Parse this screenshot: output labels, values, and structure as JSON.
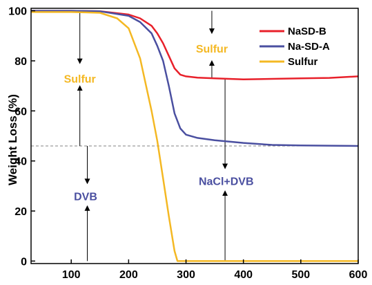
{
  "chart_data": {
    "type": "line",
    "title": "",
    "xlabel": "",
    "ylabel": "Weight Loss (%)",
    "xlim": [
      30,
      600
    ],
    "ylim": [
      -1,
      101
    ],
    "xticks": [
      100,
      200,
      300,
      400,
      500,
      600
    ],
    "yticks": [
      0,
      20,
      40,
      60,
      80,
      100
    ],
    "grid": false,
    "legend_position": "top-right",
    "reference_line": {
      "y": 46,
      "style": "dashed"
    },
    "series": [
      {
        "name": "NaSD-B",
        "color": "#e8202a",
        "x": [
          30,
          100,
          150,
          200,
          220,
          240,
          250,
          260,
          270,
          280,
          290,
          300,
          320,
          350,
          400,
          450,
          500,
          550,
          600
        ],
        "y": [
          100,
          100,
          99.8,
          98.5,
          97,
          94,
          91,
          87,
          82,
          77,
          74.5,
          73.8,
          73.3,
          73,
          72.6,
          72.8,
          73,
          73.2,
          73.8
        ]
      },
      {
        "name": "Na-SD-A",
        "color": "#4a4fa0",
        "x": [
          30,
          100,
          150,
          200,
          220,
          240,
          250,
          260,
          270,
          280,
          290,
          300,
          320,
          350,
          400,
          450,
          500,
          550,
          600
        ],
        "y": [
          100,
          100,
          99.8,
          98,
          95.5,
          91,
          86,
          80,
          70,
          59,
          53,
          50.5,
          49.2,
          48.3,
          47.2,
          46.4,
          46.2,
          46.1,
          46
        ]
      },
      {
        "name": "Sulfur",
        "color": "#f4b823",
        "x": [
          30,
          100,
          150,
          180,
          200,
          220,
          240,
          250,
          260,
          270,
          280,
          285,
          300,
          400,
          500,
          600
        ],
        "y": [
          99.5,
          99.5,
          99.2,
          97,
          93,
          81,
          60,
          48,
          33,
          18,
          4,
          0,
          0,
          0,
          0,
          0
        ]
      }
    ],
    "annotations": [
      {
        "text": "Sulfur",
        "x": 115,
        "y": 73,
        "color": "#f4b823"
      },
      {
        "text": "Sulfur",
        "x": 345,
        "y": 85,
        "color": "#f4b823"
      },
      {
        "text": "DVB",
        "x": 125,
        "y": 26,
        "color": "#4a4fa0"
      },
      {
        "text": "NaCl+DVB",
        "x": 370,
        "y": 32,
        "color": "#4a4fa0"
      }
    ],
    "arrows": [
      {
        "x": 115,
        "from": 100,
        "to": 79
      },
      {
        "x": 115,
        "from": 46,
        "to": 70
      },
      {
        "x": 128,
        "from": 46,
        "to": 31
      },
      {
        "x": 128,
        "from": 0,
        "to": 22
      },
      {
        "x": 345,
        "from": 100,
        "to": 91
      },
      {
        "x": 345,
        "from": 73,
        "to": 80
      },
      {
        "x": 368,
        "from": 73,
        "to": 37
      },
      {
        "x": 368,
        "from": 0,
        "to": 28
      }
    ]
  }
}
